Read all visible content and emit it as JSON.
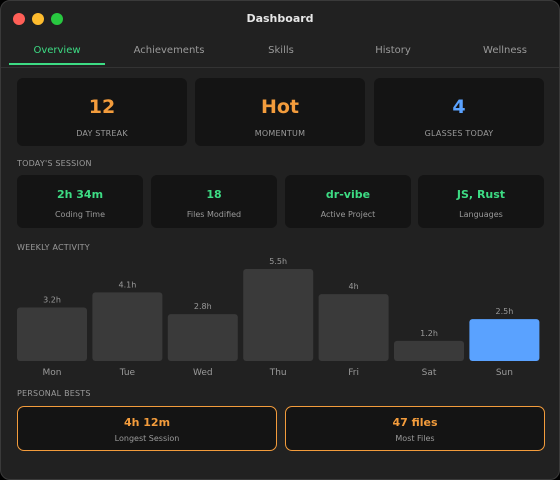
{
  "window": {
    "title": "Dashboard"
  },
  "tabs": [
    {
      "label": "Overview",
      "active": true
    },
    {
      "label": "Achievements"
    },
    {
      "label": "Skills"
    },
    {
      "label": "History"
    },
    {
      "label": "Wellness"
    }
  ],
  "stats": [
    {
      "value": "12",
      "label": "DAY STREAK",
      "color": "#f39c3c"
    },
    {
      "value": "Hot",
      "label": "MOMENTUM",
      "color": "#f39c3c"
    },
    {
      "value": "4",
      "label": "GLASSES TODAY",
      "color": "#5aa2ff"
    }
  ],
  "session": {
    "heading": "TODAY'S SESSION",
    "items": [
      {
        "value": "2h 34m",
        "label": "Coding Time"
      },
      {
        "value": "18",
        "label": "Files Modified"
      },
      {
        "value": "dr-vibe",
        "label": "Active Project"
      },
      {
        "value": "JS, Rust",
        "label": "Languages"
      }
    ]
  },
  "weekly": {
    "heading": "WEEKLY ACTIVITY"
  },
  "chart_data": {
    "type": "bar",
    "categories": [
      "Mon",
      "Tue",
      "Wed",
      "Thu",
      "Fri",
      "Sat",
      "Sun"
    ],
    "values": [
      3.2,
      4.1,
      2.8,
      5.5,
      4,
      1.2,
      2.5
    ],
    "value_labels": [
      "3.2h",
      "4.1h",
      "2.8h",
      "5.5h",
      "4h",
      "1.2h",
      "2.5h"
    ],
    "highlight_index": 6,
    "bar_color": "#3a3a3a",
    "highlight_color": "#5aa2ff",
    "ylim": [
      0,
      5.5
    ]
  },
  "bests": {
    "heading": "PERSONAL BESTS",
    "items": [
      {
        "value": "4h 12m",
        "label": "Longest Session"
      },
      {
        "value": "47 files",
        "label": "Most Files"
      }
    ]
  }
}
